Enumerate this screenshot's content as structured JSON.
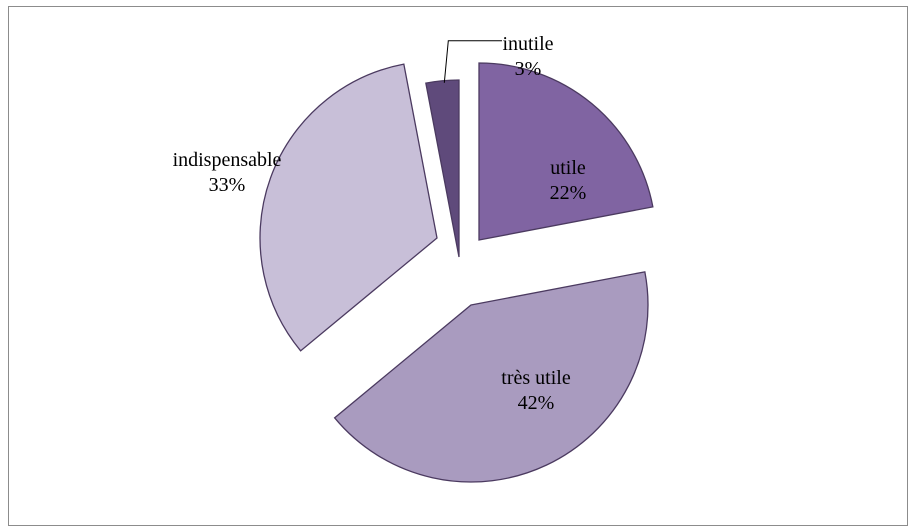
{
  "chart_data": {
    "type": "pie",
    "title": "",
    "slices": [
      {
        "label": "utile",
        "percent_label": "22%",
        "value": 22,
        "color": "#8064a2"
      },
      {
        "label": "très utile",
        "percent_label": "42%",
        "value": 42,
        "color": "#a99bbf"
      },
      {
        "label": "indispensable",
        "percent_label": "33%",
        "value": 33,
        "color": "#c8bfd8"
      },
      {
        "label": "inutile",
        "percent_label": "3%",
        "value": 3,
        "color": "#5f4a7b"
      }
    ],
    "exploded": true,
    "start_angle_deg": 90,
    "direction": "clockwise",
    "edge_color": "#4b3a60",
    "legend": "none"
  }
}
